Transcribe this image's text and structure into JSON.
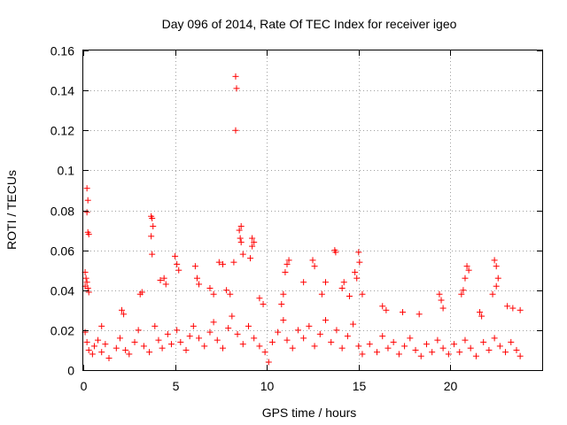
{
  "chart_data": {
    "type": "scatter",
    "title": "Day 096 of 2014, Rate Of TEC Index for receiver igeo",
    "xlabel": "GPS time / hours",
    "ylabel": "ROTI / TECUs",
    "xlim": [
      0,
      24
    ],
    "ylim": [
      0,
      0.16
    ],
    "xticks": [
      0,
      5,
      10,
      15,
      20,
      25
    ],
    "xtick_labels": [
      "0",
      "5",
      "10",
      "15",
      "20"
    ],
    "yticks": [
      0,
      0.02,
      0.04,
      0.06,
      0.08,
      0.1,
      0.12,
      0.14,
      0.16
    ],
    "ytick_labels": [
      "0",
      "0.02",
      "0.04",
      "0.06",
      "0.08",
      "0.1",
      "0.12",
      "0.14",
      "0.16"
    ],
    "grid": true,
    "marker": "+",
    "marker_color": "#ff0000",
    "series": [
      {
        "name": "ROTI",
        "points": [
          [
            8.3,
            0.147
          ],
          [
            8.35,
            0.141
          ],
          [
            8.3,
            0.12
          ],
          [
            0.2,
            0.091
          ],
          [
            0.25,
            0.085
          ],
          [
            0.2,
            0.079
          ],
          [
            0.25,
            0.069
          ],
          [
            0.3,
            0.068
          ],
          [
            0.1,
            0.049
          ],
          [
            0.15,
            0.046
          ],
          [
            0.2,
            0.044
          ],
          [
            0.1,
            0.042
          ],
          [
            0.25,
            0.041
          ],
          [
            0.3,
            0.039
          ],
          [
            3.7,
            0.077
          ],
          [
            3.75,
            0.076
          ],
          [
            3.8,
            0.072
          ],
          [
            3.7,
            0.067
          ],
          [
            3.75,
            0.058
          ],
          [
            8.6,
            0.072
          ],
          [
            8.5,
            0.07
          ],
          [
            8.55,
            0.066
          ],
          [
            8.6,
            0.064
          ],
          [
            9.2,
            0.066
          ],
          [
            9.3,
            0.064
          ],
          [
            9.2,
            0.062
          ],
          [
            8.7,
            0.058
          ],
          [
            8.2,
            0.054
          ],
          [
            7.4,
            0.054
          ],
          [
            7.6,
            0.053
          ],
          [
            9.1,
            0.056
          ],
          [
            13.7,
            0.06
          ],
          [
            13.75,
            0.059
          ],
          [
            15.0,
            0.059
          ],
          [
            15.05,
            0.054
          ],
          [
            5.0,
            0.057
          ],
          [
            5.1,
            0.053
          ],
          [
            5.2,
            0.05
          ],
          [
            6.1,
            0.052
          ],
          [
            6.2,
            0.046
          ],
          [
            6.3,
            0.043
          ],
          [
            11.2,
            0.055
          ],
          [
            11.1,
            0.053
          ],
          [
            12.5,
            0.055
          ],
          [
            12.6,
            0.052
          ],
          [
            11.0,
            0.049
          ],
          [
            14.8,
            0.049
          ],
          [
            14.9,
            0.046
          ],
          [
            14.2,
            0.044
          ],
          [
            14.1,
            0.041
          ],
          [
            20.9,
            0.052
          ],
          [
            21.0,
            0.05
          ],
          [
            20.8,
            0.046
          ],
          [
            20.7,
            0.04
          ],
          [
            20.6,
            0.038
          ],
          [
            22.4,
            0.055
          ],
          [
            22.5,
            0.052
          ],
          [
            22.6,
            0.046
          ],
          [
            22.5,
            0.042
          ],
          [
            22.3,
            0.038
          ],
          [
            3.1,
            0.038
          ],
          [
            3.2,
            0.039
          ],
          [
            4.2,
            0.045
          ],
          [
            4.4,
            0.046
          ],
          [
            4.5,
            0.043
          ],
          [
            10.9,
            0.038
          ],
          [
            10.8,
            0.033
          ],
          [
            12.0,
            0.044
          ],
          [
            13.2,
            0.044
          ],
          [
            13.0,
            0.038
          ],
          [
            14.5,
            0.037
          ],
          [
            15.2,
            0.038
          ],
          [
            19.4,
            0.038
          ],
          [
            19.5,
            0.035
          ],
          [
            19.6,
            0.031
          ],
          [
            16.3,
            0.032
          ],
          [
            16.5,
            0.03
          ],
          [
            17.4,
            0.029
          ],
          [
            18.3,
            0.028
          ],
          [
            21.6,
            0.029
          ],
          [
            21.7,
            0.027
          ],
          [
            23.1,
            0.032
          ],
          [
            23.4,
            0.031
          ],
          [
            23.8,
            0.03
          ],
          [
            2.1,
            0.03
          ],
          [
            2.2,
            0.028
          ],
          [
            1.0,
            0.022
          ],
          [
            6.9,
            0.041
          ],
          [
            7.1,
            0.038
          ],
          [
            7.8,
            0.04
          ],
          [
            8.0,
            0.038
          ],
          [
            9.6,
            0.036
          ],
          [
            9.8,
            0.033
          ],
          [
            0.1,
            0.019
          ],
          [
            0.2,
            0.014
          ],
          [
            0.3,
            0.01
          ],
          [
            0.5,
            0.008
          ],
          [
            0.6,
            0.012
          ],
          [
            0.8,
            0.015
          ],
          [
            1.0,
            0.009
          ],
          [
            1.2,
            0.013
          ],
          [
            1.4,
            0.006
          ],
          [
            1.8,
            0.011
          ],
          [
            2.0,
            0.016
          ],
          [
            2.3,
            0.01
          ],
          [
            2.5,
            0.008
          ],
          [
            2.8,
            0.014
          ],
          [
            3.0,
            0.02
          ],
          [
            3.3,
            0.012
          ],
          [
            3.6,
            0.009
          ],
          [
            3.9,
            0.022
          ],
          [
            4.1,
            0.015
          ],
          [
            4.3,
            0.011
          ],
          [
            4.6,
            0.018
          ],
          [
            4.8,
            0.013
          ],
          [
            5.1,
            0.02
          ],
          [
            5.3,
            0.014
          ],
          [
            5.6,
            0.01
          ],
          [
            5.8,
            0.017
          ],
          [
            6.0,
            0.022
          ],
          [
            6.3,
            0.016
          ],
          [
            6.6,
            0.012
          ],
          [
            6.9,
            0.019
          ],
          [
            7.1,
            0.024
          ],
          [
            7.3,
            0.015
          ],
          [
            7.6,
            0.011
          ],
          [
            7.9,
            0.021
          ],
          [
            8.1,
            0.027
          ],
          [
            8.4,
            0.018
          ],
          [
            8.7,
            0.013
          ],
          [
            9.0,
            0.022
          ],
          [
            9.3,
            0.016
          ],
          [
            9.6,
            0.012
          ],
          [
            9.9,
            0.009
          ],
          [
            10.1,
            0.004
          ],
          [
            10.3,
            0.014
          ],
          [
            10.6,
            0.019
          ],
          [
            10.9,
            0.025
          ],
          [
            11.1,
            0.015
          ],
          [
            11.4,
            0.011
          ],
          [
            11.7,
            0.02
          ],
          [
            12.0,
            0.016
          ],
          [
            12.3,
            0.022
          ],
          [
            12.6,
            0.012
          ],
          [
            12.9,
            0.018
          ],
          [
            13.2,
            0.025
          ],
          [
            13.5,
            0.014
          ],
          [
            13.8,
            0.02
          ],
          [
            14.1,
            0.011
          ],
          [
            14.4,
            0.017
          ],
          [
            14.7,
            0.023
          ],
          [
            15.0,
            0.012
          ],
          [
            15.2,
            0.008
          ],
          [
            15.6,
            0.013
          ],
          [
            16.0,
            0.009
          ],
          [
            16.3,
            0.017
          ],
          [
            16.6,
            0.011
          ],
          [
            16.9,
            0.014
          ],
          [
            17.2,
            0.008
          ],
          [
            17.5,
            0.012
          ],
          [
            17.8,
            0.016
          ],
          [
            18.1,
            0.01
          ],
          [
            18.4,
            0.007
          ],
          [
            18.7,
            0.013
          ],
          [
            19.0,
            0.009
          ],
          [
            19.3,
            0.015
          ],
          [
            19.6,
            0.011
          ],
          [
            19.9,
            0.008
          ],
          [
            20.2,
            0.013
          ],
          [
            20.5,
            0.009
          ],
          [
            20.8,
            0.015
          ],
          [
            21.1,
            0.011
          ],
          [
            21.4,
            0.007
          ],
          [
            21.8,
            0.014
          ],
          [
            22.1,
            0.01
          ],
          [
            22.4,
            0.016
          ],
          [
            22.7,
            0.012
          ],
          [
            23.0,
            0.009
          ],
          [
            23.3,
            0.014
          ],
          [
            23.6,
            0.01
          ],
          [
            23.8,
            0.007
          ]
        ]
      }
    ]
  }
}
